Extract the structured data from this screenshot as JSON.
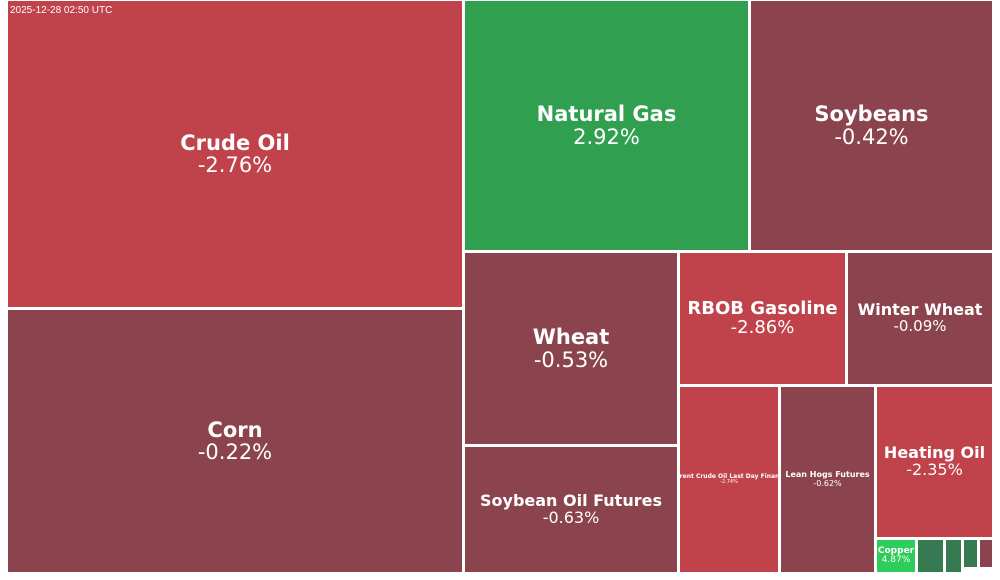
{
  "timestamp": "2025-12-28 02:50 UTC",
  "colors": {
    "negative": "#c0424a",
    "slightly_negative": "#8b444e",
    "positive": "#30a050",
    "strong_positive": "#2ecc5a",
    "mild_positive": "#357a50"
  },
  "chart_data": {
    "type": "treemap",
    "tiles": [
      {
        "name": "Crude Oil",
        "change": "-2.76%"
      },
      {
        "name": "Corn",
        "change": "-0.22%"
      },
      {
        "name": "Natural Gas",
        "change": "2.92%"
      },
      {
        "name": "Soybeans",
        "change": "-0.42%"
      },
      {
        "name": "Wheat",
        "change": "-0.53%"
      },
      {
        "name": "Soybean Oil Futures",
        "change": "-0.63%"
      },
      {
        "name": "RBOB Gasoline",
        "change": "-2.86%"
      },
      {
        "name": "Winter Wheat",
        "change": "-0.09%"
      },
      {
        "name": "Brent Crude Oil Last Day Financ",
        "change": "-2.74%"
      },
      {
        "name": "Lean Hogs Futures",
        "change": "-0.62%"
      },
      {
        "name": "Heating Oil",
        "change": "-2.35%"
      },
      {
        "name": "Copper",
        "change": "4.87%"
      },
      {
        "name": "",
        "change": ""
      },
      {
        "name": "",
        "change": ""
      },
      {
        "name": "",
        "change": ""
      },
      {
        "name": "",
        "change": ""
      }
    ]
  }
}
